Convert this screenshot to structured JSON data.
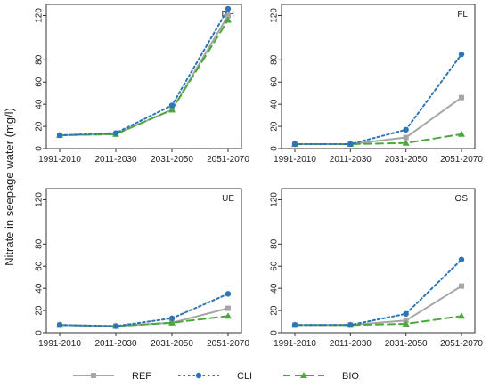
{
  "figure": {
    "ylabel": "Nitrate in seepage water (mg/l)"
  },
  "colors": {
    "REF": "#a6a6a6",
    "CLI": "#2e75b6",
    "BIO": "#4ca83c"
  },
  "legend": [
    {
      "name": "REF",
      "style": "solid",
      "marker": "square"
    },
    {
      "name": "CLI",
      "style": "dotted",
      "marker": "circle"
    },
    {
      "name": "BIO",
      "style": "dashed",
      "marker": "triangle"
    }
  ],
  "chart_data": [
    {
      "type": "line",
      "label": "DH",
      "categories": [
        "1991-2010",
        "2011-2030",
        "2031-2050",
        "2051-2070"
      ],
      "series": [
        {
          "name": "REF",
          "values": [
            12,
            13,
            35,
            120
          ]
        },
        {
          "name": "CLI",
          "values": [
            12,
            14,
            39,
            126
          ]
        },
        {
          "name": "BIO",
          "values": [
            12,
            13,
            35,
            116
          ]
        }
      ],
      "yticks": [
        0,
        20,
        40,
        60,
        80,
        120
      ],
      "ylim": [
        0,
        130
      ]
    },
    {
      "type": "line",
      "label": "FL",
      "categories": [
        "1991-2010",
        "2011-2030",
        "2031-2050",
        "2051-2070"
      ],
      "series": [
        {
          "name": "REF",
          "values": [
            4,
            4,
            10,
            46
          ]
        },
        {
          "name": "CLI",
          "values": [
            4,
            4,
            17,
            85
          ]
        },
        {
          "name": "BIO",
          "values": [
            4,
            4,
            5,
            13
          ]
        }
      ],
      "yticks": [
        0,
        20,
        40,
        60,
        80,
        120
      ],
      "ylim": [
        0,
        130
      ]
    },
    {
      "type": "line",
      "label": "UE",
      "categories": [
        "1991-2010",
        "2011-2030",
        "2031-2050",
        "2051-2070"
      ],
      "series": [
        {
          "name": "REF",
          "values": [
            7,
            6,
            9,
            22
          ]
        },
        {
          "name": "CLI",
          "values": [
            7,
            6,
            13,
            35
          ]
        },
        {
          "name": "BIO",
          "values": [
            7,
            6,
            9,
            15
          ]
        }
      ],
      "yticks": [
        0,
        20,
        40,
        60,
        80,
        120
      ],
      "ylim": [
        0,
        130
      ]
    },
    {
      "type": "line",
      "label": "OS",
      "categories": [
        "1991-2010",
        "2011-2030",
        "2031-2050",
        "2051-2070"
      ],
      "series": [
        {
          "name": "REF",
          "values": [
            7,
            7,
            11,
            42
          ]
        },
        {
          "name": "CLI",
          "values": [
            7,
            7,
            17,
            66
          ]
        },
        {
          "name": "BIO",
          "values": [
            7,
            7,
            8,
            15
          ]
        }
      ],
      "yticks": [
        0,
        20,
        40,
        60,
        80,
        120
      ],
      "ylim": [
        0,
        130
      ]
    }
  ]
}
